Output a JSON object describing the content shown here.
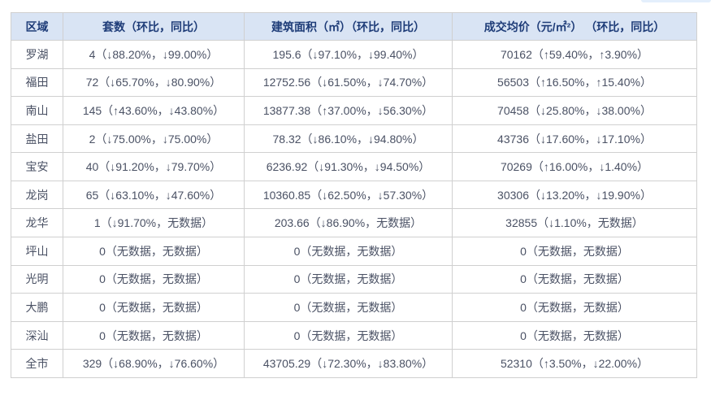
{
  "partial_button": {
    "color": "#e4effc"
  },
  "table": {
    "colors": {
      "header_bg": "#d9e4f4",
      "header_text": "#1e3c78",
      "body_text": "#4a5164",
      "border": "#d0d0d0",
      "outer_border": "#c0c0c0"
    },
    "columns": [
      {
        "label": "区域"
      },
      {
        "label": "套数（环比，同比）"
      },
      {
        "label": "建筑面积（㎡）（环比，同比）"
      },
      {
        "label": "成交均价（元/㎡²） （环比，同比）"
      }
    ],
    "rows": [
      {
        "region": "罗湖",
        "units": "4（↓88.20%，↓99.00%）",
        "area": "195.6（↓97.10%，↓99.40%）",
        "price": "70162（↑59.40%，↑3.90%）"
      },
      {
        "region": "福田",
        "units": "72（↓65.70%，↓80.90%）",
        "area": "12752.56（↓61.50%，↓74.70%）",
        "price": "56503（↑16.50%，↑15.40%）"
      },
      {
        "region": "南山",
        "units": "145（↑43.60%，↓43.80%）",
        "area": "13877.38（↑37.00%，↓56.30%）",
        "price": "70458（↓25.80%，↓38.00%）"
      },
      {
        "region": "盐田",
        "units": "2（↓75.00%，↓75.00%）",
        "area": "78.32（↓86.10%，↓94.80%）",
        "price": "43736（↓17.60%，↓17.10%）"
      },
      {
        "region": "宝安",
        "units": "40（↓91.20%，↓79.70%）",
        "area": "6236.92（↓91.30%，↓94.50%）",
        "price": "70269（↑16.00%，↓1.40%）"
      },
      {
        "region": "龙岗",
        "units": "65（↓63.10%，↓47.60%）",
        "area": "10360.85（↓62.50%，↓57.30%）",
        "price": "30306（↓13.20%，↓19.90%）"
      },
      {
        "region": "龙华",
        "units": "1（↓91.70%，无数据）",
        "area": "203.66（↓86.90%，无数据）",
        "price": "32855（↓1.10%，无数据）"
      },
      {
        "region": "坪山",
        "units": "0（无数据，无数据）",
        "area": "0（无数据，无数据）",
        "price": "0（无数据，无数据）"
      },
      {
        "region": "光明",
        "units": "0（无数据，无数据）",
        "area": "0（无数据，无数据）",
        "price": "0（无数据，无数据）"
      },
      {
        "region": "大鹏",
        "units": "0（无数据，无数据）",
        "area": "0（无数据，无数据）",
        "price": "0（无数据，无数据）"
      },
      {
        "region": "深汕",
        "units": "0（无数据，无数据）",
        "area": "0（无数据，无数据）",
        "price": "0（无数据，无数据）"
      },
      {
        "region": "全市",
        "units": "329（↓68.90%，↓76.60%）",
        "area": "43705.29（↓72.30%，↓83.80%）",
        "price": "52310（↑3.50%，↓22.00%）"
      }
    ]
  }
}
